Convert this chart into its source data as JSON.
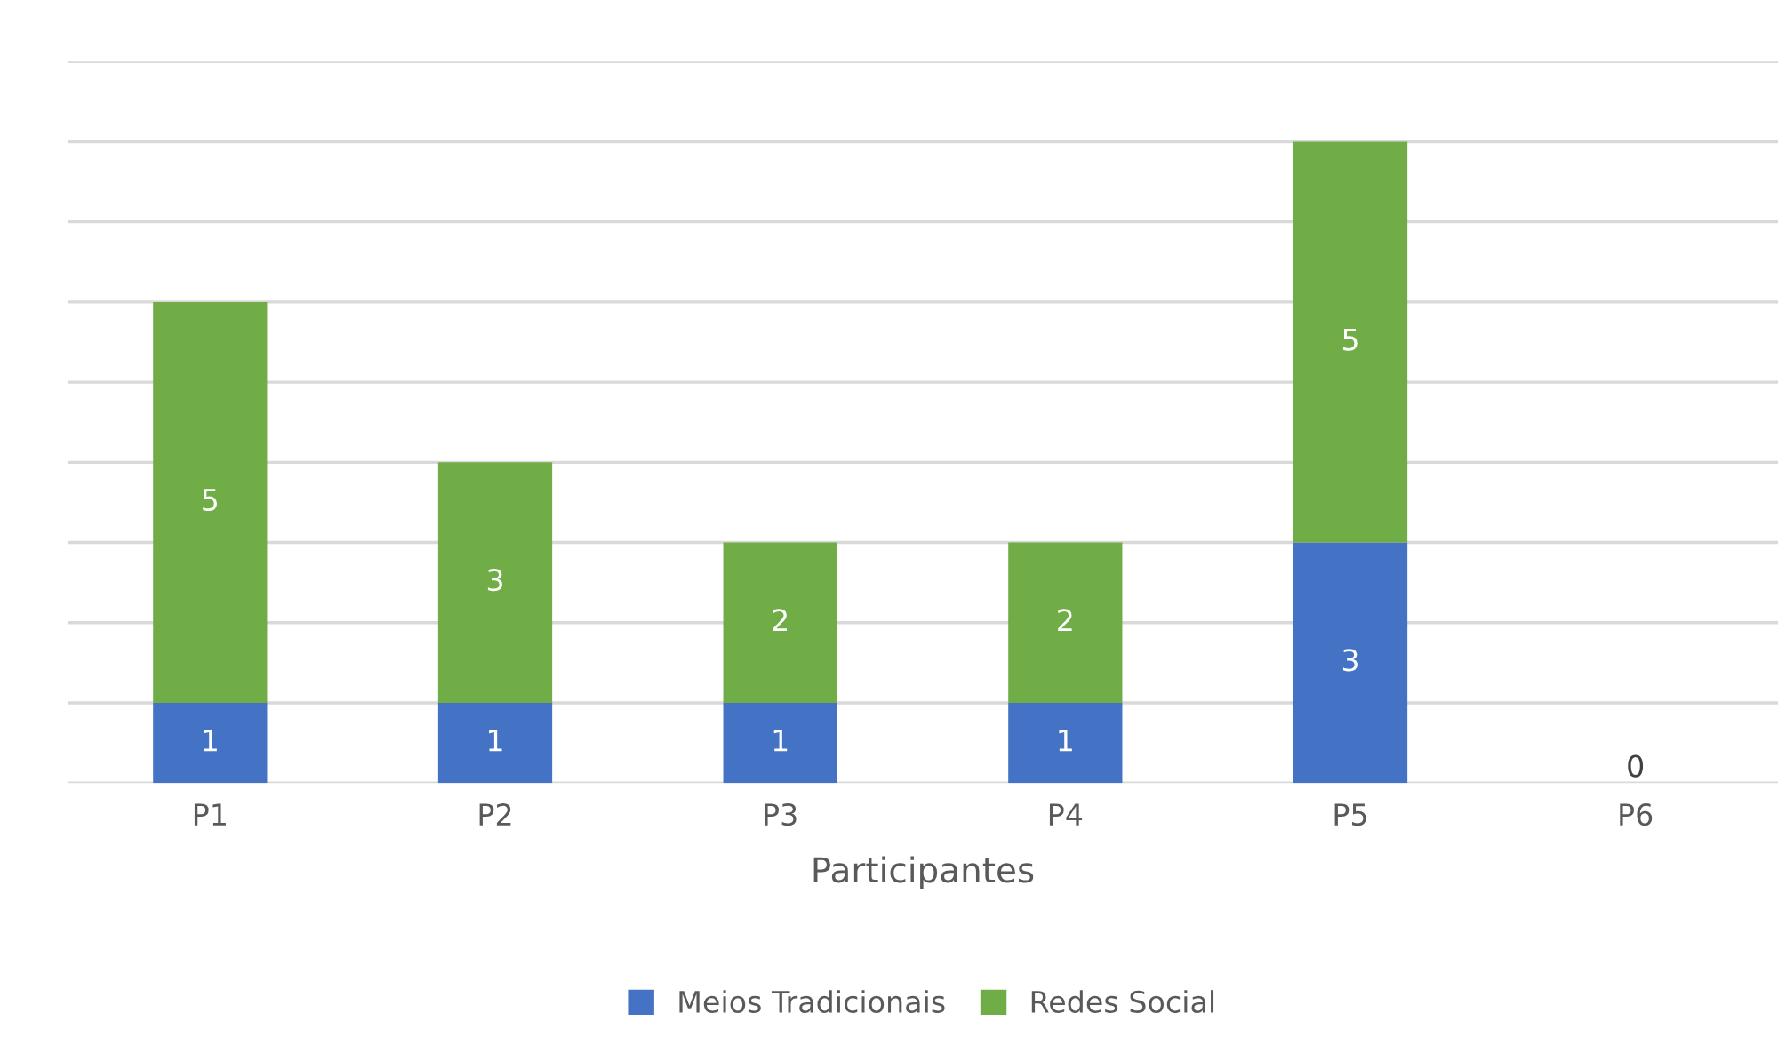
{
  "chart_data": {
    "type": "bar",
    "stacked": true,
    "xlabel": "Participantes",
    "categories": [
      "P1",
      "P2",
      "P3",
      "P4",
      "P5",
      "P6"
    ],
    "series": [
      {
        "name": "Meios Tradicionais",
        "color": "#4472c4",
        "values": [
          1,
          1,
          1,
          1,
          3,
          0
        ],
        "value_labels": [
          "1",
          "1",
          "1",
          "1",
          "3",
          null
        ]
      },
      {
        "name": "Redes Social",
        "color": "#70ad47",
        "values": [
          5,
          3,
          2,
          2,
          5,
          0
        ],
        "value_labels": [
          "5",
          "3",
          "2",
          "2",
          "5",
          "0"
        ]
      }
    ],
    "ylim": [
      0,
      9
    ],
    "yticks": [
      {
        "value": 0,
        "label": null
      },
      {
        "value": 1,
        "label": null
      },
      {
        "value": 2,
        "label": null
      },
      {
        "value": 3,
        "label": null
      },
      {
        "value": 4,
        "label": null
      },
      {
        "value": 5,
        "label": null
      },
      {
        "value": 6,
        "label": null
      },
      {
        "value": 7,
        "label": null
      },
      {
        "value": 8,
        "label": null
      },
      {
        "value": 9,
        "label": null
      }
    ],
    "tick_labels": "x",
    "grid": "y",
    "legend": "bottom"
  }
}
